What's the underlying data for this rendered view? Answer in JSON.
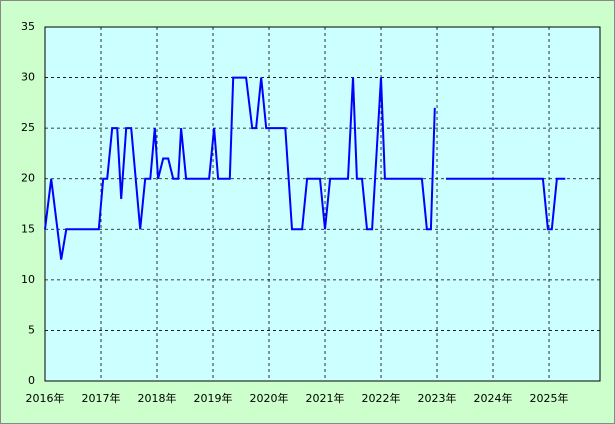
{
  "chart_data": {
    "type": "line",
    "x": [
      2016.0,
      2016.11,
      2016.29,
      2016.38,
      2016.96,
      2017.04,
      2017.11,
      2017.2,
      2017.29,
      2017.36,
      2017.45,
      2017.54,
      2017.7,
      2017.79,
      2017.88,
      2017.96,
      2018.02,
      2018.11,
      2018.2,
      2018.29,
      2018.38,
      2018.43,
      2018.52,
      2018.93,
      2019.02,
      2019.09,
      2019.3,
      2019.36,
      2019.59,
      2019.7,
      2019.77,
      2019.86,
      2019.95,
      2020.29,
      2020.41,
      2020.59,
      2020.68,
      2020.91,
      2021.0,
      2021.09,
      2021.41,
      2021.5,
      2021.57,
      2021.66,
      2021.75,
      2021.84,
      2022.0,
      2022.07,
      2022.73,
      2022.82,
      2022.89,
      2022.96,
      2023.06,
      2023.16,
      2024.89,
      2024.98,
      2025.05,
      2025.14,
      2025.29
    ],
    "values": [
      15,
      20,
      12,
      15,
      15,
      20,
      20,
      25,
      25,
      18,
      25,
      25,
      15,
      20,
      20,
      25,
      20,
      22,
      22,
      20,
      20,
      25,
      20,
      20,
      25,
      20,
      20,
      30,
      30,
      25,
      25,
      30,
      25,
      25,
      15,
      15,
      20,
      20,
      15,
      20,
      20,
      30,
      20,
      20,
      15,
      15,
      30,
      20,
      20,
      15,
      15,
      27,
      null,
      20,
      20,
      15,
      15,
      20,
      20
    ],
    "color": "#0000ff",
    "xlim": [
      2016,
      2025.91
    ],
    "xticks": [
      {
        "value": 2016,
        "label": "2016年"
      },
      {
        "value": 2017,
        "label": "2017年"
      },
      {
        "value": 2018,
        "label": "2018年"
      },
      {
        "value": 2019,
        "label": "2019年"
      },
      {
        "value": 2020,
        "label": "2020年"
      },
      {
        "value": 2021,
        "label": "2021年"
      },
      {
        "value": 2022,
        "label": "2022年"
      },
      {
        "value": 2023,
        "label": "2023年"
      },
      {
        "value": 2024,
        "label": "2024年"
      },
      {
        "value": 2025,
        "label": "2025年"
      }
    ],
    "ylim": [
      0,
      35
    ],
    "yticks": [
      0,
      5,
      10,
      15,
      20,
      25,
      30,
      35
    ],
    "grid": true
  }
}
